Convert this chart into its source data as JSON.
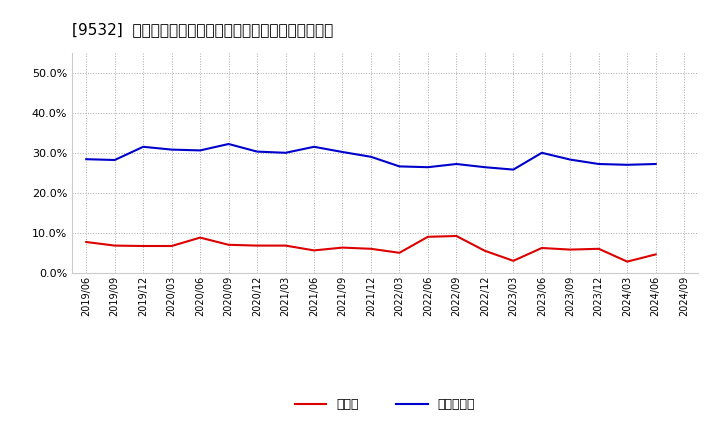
{
  "title": "[9532]  現週金、有利子負債の総資産に対する比率の推移",
  "x_labels": [
    "2019/06",
    "2019/09",
    "2019/12",
    "2020/03",
    "2020/06",
    "2020/09",
    "2020/12",
    "2021/03",
    "2021/06",
    "2021/09",
    "2021/12",
    "2022/03",
    "2022/06",
    "2022/09",
    "2022/12",
    "2023/03",
    "2023/06",
    "2023/09",
    "2023/12",
    "2024/03",
    "2024/06",
    "2024/09"
  ],
  "cash": [
    0.077,
    0.068,
    0.067,
    0.067,
    0.088,
    0.07,
    0.068,
    0.068,
    0.056,
    0.063,
    0.06,
    0.05,
    0.09,
    0.092,
    0.055,
    0.03,
    0.062,
    0.058,
    0.06,
    0.028,
    0.046,
    null
  ],
  "debt": [
    0.284,
    0.282,
    0.315,
    0.308,
    0.306,
    0.322,
    0.303,
    0.3,
    0.315,
    0.302,
    0.29,
    0.266,
    0.264,
    0.272,
    0.264,
    0.258,
    0.3,
    0.283,
    0.272,
    0.27,
    0.272,
    null
  ],
  "cash_color": "#dd0000",
  "debt_color": "#0000cc",
  "bg_color": "#ffffff",
  "grid_color": "#aaaaaa",
  "ylim": [
    0.0,
    0.55
  ],
  "yticks": [
    0.0,
    0.1,
    0.2,
    0.3,
    0.4,
    0.5
  ],
  "legend_cash": "現週金",
  "legend_debt": "有利子負債",
  "title_fontsize": 11
}
